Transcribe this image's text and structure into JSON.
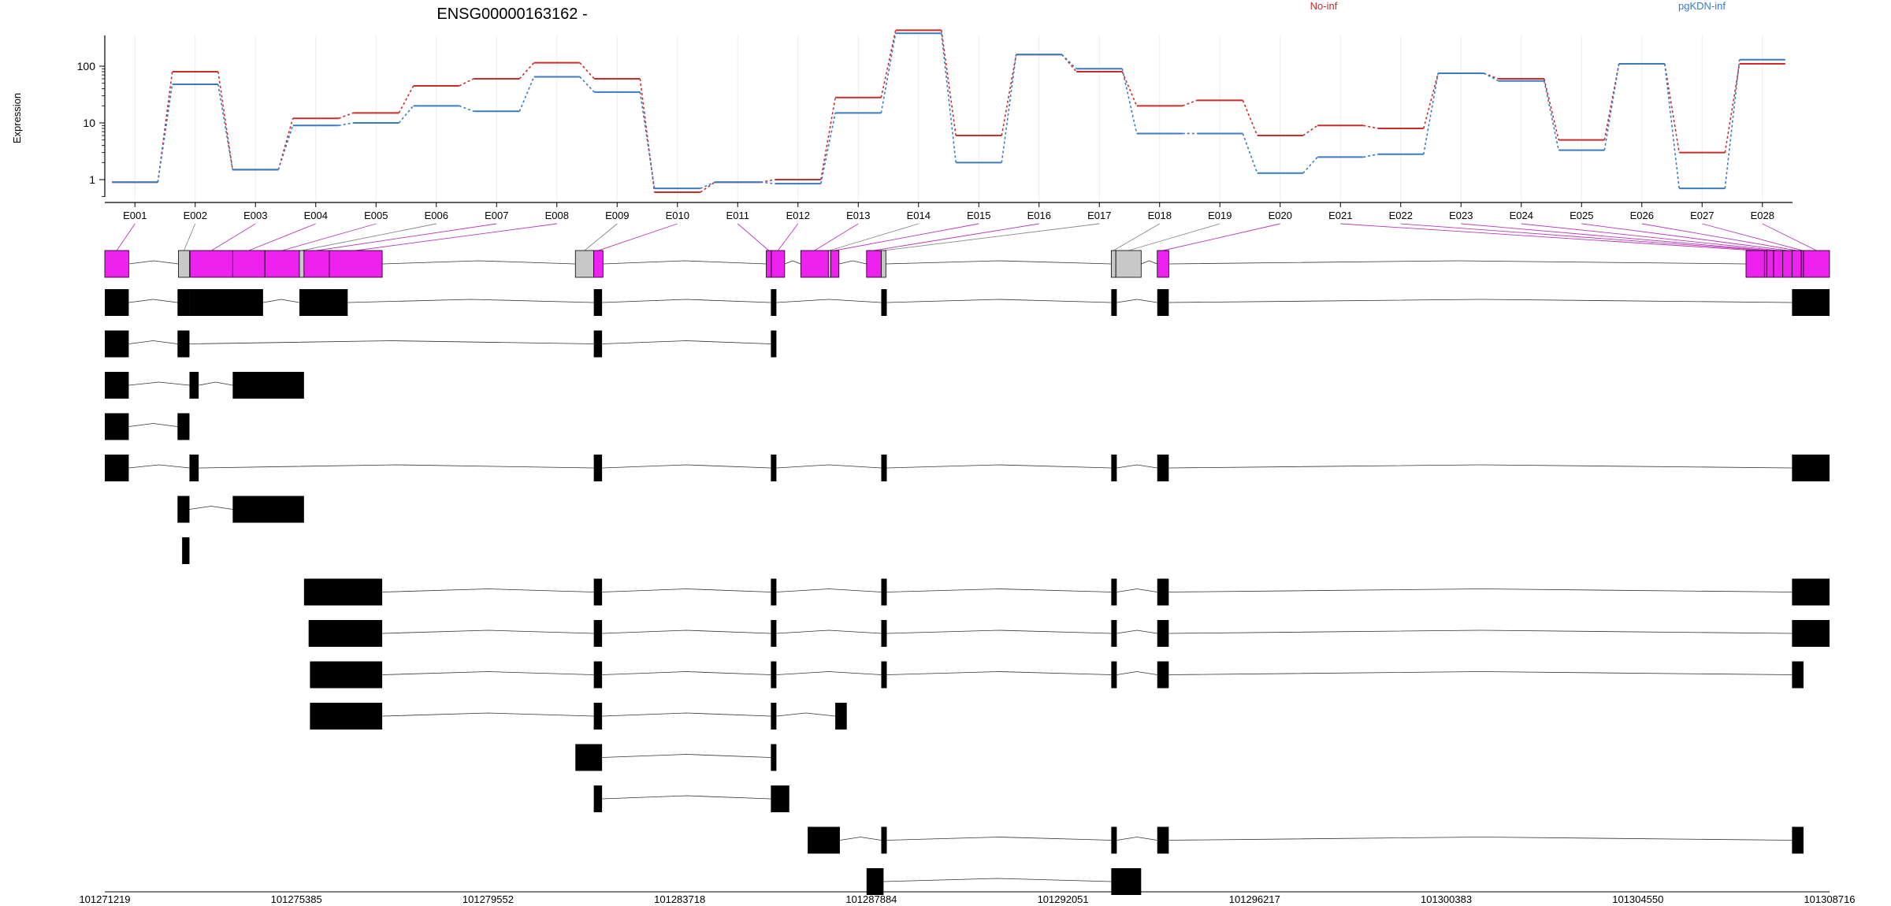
{
  "chart_data": {
    "type": "line",
    "title": "ENSG00000163162 -",
    "ylabel": "Expression",
    "y_scale": "log",
    "y_ticks": [
      "1",
      "10",
      "100"
    ],
    "legend_placement": "top-right",
    "colors": {
      "No-inf": "#cc2b2b",
      "pgKDN-inf": "#3b7bbf",
      "exon_highlight": "#ee22ee",
      "exon_other": "#c8c8c8"
    },
    "categories": [
      "E001",
      "E002",
      "E003",
      "E004",
      "E005",
      "E006",
      "E007",
      "E008",
      "E009",
      "E010",
      "E011",
      "E012",
      "E013",
      "E014",
      "E015",
      "E016",
      "E017",
      "E018",
      "E019",
      "E020",
      "E021",
      "E022",
      "E023",
      "E024",
      "E025",
      "E026",
      "E027",
      "E028"
    ],
    "series": [
      {
        "name": "No-inf",
        "color": "#cc2b2b",
        "values": [
          0.9,
          80,
          1.5,
          12,
          15,
          45,
          60,
          115,
          60,
          0.6,
          0.9,
          1.0,
          28,
          430,
          6,
          160,
          80,
          20,
          25,
          6,
          9,
          8,
          75,
          60,
          5,
          110,
          3,
          110
        ]
      },
      {
        "name": "pgKDN-inf",
        "color": "#3b7bbf",
        "values": [
          0.9,
          48,
          1.5,
          9,
          10,
          20,
          16,
          65,
          35,
          0.7,
          0.9,
          0.85,
          15,
          380,
          2,
          160,
          90,
          6.5,
          6.5,
          1.3,
          2.5,
          2.8,
          75,
          55,
          3.3,
          110,
          0.7,
          130
        ]
      }
    ],
    "genomic_coords": {
      "start": 101271219,
      "end": 101308716,
      "ticks": [
        "101271219",
        "101275385",
        "101279552",
        "101283718",
        "101287884",
        "101292051",
        "101296217",
        "101300383",
        "101304550",
        "101308716"
      ]
    },
    "exons": [
      {
        "name": "E001",
        "start": 101271219,
        "end": 101271740,
        "tested": true
      },
      {
        "name": "E002",
        "start": 101272820,
        "end": 101273060,
        "tested": false
      },
      {
        "name": "E003",
        "start": 101273080,
        "end": 101274000,
        "tested": true
      },
      {
        "name": "E004",
        "start": 101274000,
        "end": 101274700,
        "tested": true
      },
      {
        "name": "E005",
        "start": 101274700,
        "end": 101275450,
        "tested": true
      },
      {
        "name": "E006",
        "start": 101275450,
        "end": 101275550,
        "tested": false
      },
      {
        "name": "E007",
        "start": 101275550,
        "end": 101276100,
        "tested": true
      },
      {
        "name": "E008",
        "start": 101276100,
        "end": 101277250,
        "tested": true
      },
      {
        "name": "E009",
        "start": 101281450,
        "end": 101281850,
        "tested": false
      },
      {
        "name": "E010",
        "start": 101281850,
        "end": 101282050,
        "tested": true
      },
      {
        "name": "E011",
        "start": 101285600,
        "end": 101285710,
        "tested": true
      },
      {
        "name": "E012",
        "start": 101285710,
        "end": 101286000,
        "tested": true
      },
      {
        "name": "E013",
        "start": 101286350,
        "end": 101286950,
        "tested": true
      },
      {
        "name": "E014",
        "start": 101286950,
        "end": 101287000,
        "tested": false
      },
      {
        "name": "E015",
        "start": 101287000,
        "end": 101287180,
        "tested": true
      },
      {
        "name": "E016",
        "start": 101287780,
        "end": 101288100,
        "tested": true
      },
      {
        "name": "E017",
        "start": 101288100,
        "end": 101288200,
        "tested": false
      },
      {
        "name": "E018",
        "start": 101293100,
        "end": 101293200,
        "tested": false
      },
      {
        "name": "E019",
        "start": 101293200,
        "end": 101293750,
        "tested": false
      },
      {
        "name": "E020",
        "start": 101294100,
        "end": 101294350,
        "tested": true
      },
      {
        "name": "E021",
        "start": 101306900,
        "end": 101307300,
        "tested": true
      },
      {
        "name": "E022",
        "start": 101307300,
        "end": 101307350,
        "tested": true
      },
      {
        "name": "E023",
        "start": 101307350,
        "end": 101307500,
        "tested": true
      },
      {
        "name": "E024",
        "start": 101307500,
        "end": 101307700,
        "tested": true
      },
      {
        "name": "E025",
        "start": 101307700,
        "end": 101307900,
        "tested": true
      },
      {
        "name": "E026",
        "start": 101307900,
        "end": 101308100,
        "tested": true
      },
      {
        "name": "E027",
        "start": 101308100,
        "end": 101308150,
        "tested": true
      },
      {
        "name": "E028",
        "start": 101308150,
        "end": 101308716,
        "tested": true
      }
    ],
    "transcripts": [
      [
        [
          101271219,
          101271740
        ],
        [
          101272800,
          101273060
        ],
        [
          101273060,
          101274660
        ],
        [
          101275450,
          101276500
        ],
        [
          101281850,
          101282030
        ],
        [
          101285700,
          101285800
        ],
        [
          101288100,
          101288200
        ],
        [
          101293100,
          101293150
        ],
        [
          101294100,
          101294350
        ],
        [
          101307900,
          101308716
        ]
      ],
      [
        [
          101271219,
          101271740
        ],
        [
          101272800,
          101273060
        ],
        [
          101281850,
          101282030
        ],
        [
          101285700,
          101285800
        ]
      ],
      [
        [
          101271219,
          101271740
        ],
        [
          101273060,
          101273260
        ],
        [
          101274000,
          101275550
        ]
      ],
      [
        [
          101271219,
          101271740
        ],
        [
          101272800,
          101273060
        ]
      ],
      [
        [
          101271219,
          101271740
        ],
        [
          101273060,
          101273260
        ],
        [
          101281850,
          101282030
        ],
        [
          101285700,
          101285800
        ],
        [
          101288100,
          101288200
        ],
        [
          101293100,
          101293150
        ],
        [
          101294100,
          101294350
        ],
        [
          101307900,
          101308716
        ]
      ],
      [
        [
          101272800,
          101273060
        ],
        [
          101274000,
          101275550
        ]
      ],
      [
        [
          101272900,
          101273060
        ]
      ],
      [
        [
          101275550,
          101277250
        ],
        [
          101281850,
          101282030
        ],
        [
          101285700,
          101285800
        ],
        [
          101288100,
          101288200
        ],
        [
          101293100,
          101293150
        ],
        [
          101294100,
          101294350
        ],
        [
          101307900,
          101308716
        ]
      ],
      [
        [
          101275650,
          101277250
        ],
        [
          101281850,
          101282030
        ],
        [
          101285700,
          101285800
        ],
        [
          101288100,
          101288200
        ],
        [
          101293100,
          101293150
        ],
        [
          101294100,
          101294350
        ],
        [
          101307900,
          101308716
        ]
      ],
      [
        [
          101275680,
          101277250
        ],
        [
          101281850,
          101282030
        ],
        [
          101285700,
          101285800
        ],
        [
          101288100,
          101288200
        ],
        [
          101293100,
          101293150
        ],
        [
          101294100,
          101294350
        ],
        [
          101307900,
          101308150
        ]
      ],
      [
        [
          101275680,
          101277250
        ],
        [
          101281850,
          101282030
        ],
        [
          101285700,
          101285800
        ],
        [
          101287100,
          101287350
        ]
      ],
      [
        [
          101281450,
          101282030
        ],
        [
          101285700,
          101285800
        ]
      ],
      [
        [
          101281850,
          101282030
        ],
        [
          101285700,
          101286100
        ]
      ],
      [
        [
          101286500,
          101287200
        ],
        [
          101288100,
          101288200
        ],
        [
          101293100,
          101293150
        ],
        [
          101294100,
          101294350
        ],
        [
          101307900,
          101308150
        ]
      ],
      [
        [
          101287780,
          101288150
        ],
        [
          101293100,
          101293750
        ]
      ]
    ]
  }
}
